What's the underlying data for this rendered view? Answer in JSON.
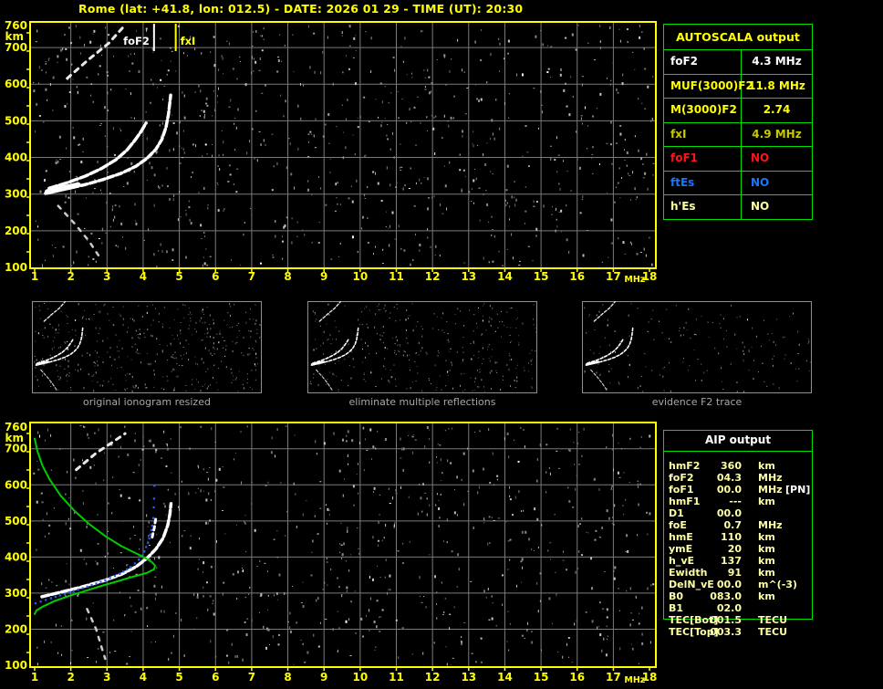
{
  "title": "Rome (lat: +41.8, lon: 012.5) - DATE: 2026 01 29 - TIME (UT): 20:30",
  "colors": {
    "axis_yellow": "#ffff00",
    "grid_gray": "#7a7a7a",
    "table_border_green": "#00e000",
    "profile_green": "#00cc00",
    "scaled_trace_blue": "#2b5dff",
    "pale_yellow": "#ffffa6"
  },
  "autoscala_table": {
    "header": "AUTOSCALA output",
    "rows": [
      {
        "label": "foF2",
        "value": "4.3 MHz",
        "color": "#ffffff",
        "center": true
      },
      {
        "label": "MUF(3000)F2",
        "value": "11.8 MHz",
        "color": "#ffff00",
        "center": true
      },
      {
        "label": "M(3000)F2",
        "value": "2.74",
        "color": "#ffff00",
        "center": true
      },
      {
        "label": "fxI",
        "value": "4.9 MHz",
        "color": "#c8c800",
        "center": true
      },
      {
        "label": "foF1",
        "value": "NO",
        "color": "#ff1515",
        "center": false
      },
      {
        "label": "ftEs",
        "value": "NO",
        "color": "#1a75ff",
        "center": false
      },
      {
        "label": "h'Es",
        "value": "NO",
        "color": "#ffff9c",
        "center": false
      }
    ]
  },
  "aip_table": {
    "header": "AIP output",
    "rows": [
      {
        "label": "hmF2",
        "value": "360",
        "unit": "km",
        "extra": ""
      },
      {
        "label": "foF2",
        "value": "04.3",
        "unit": "MHz",
        "extra": ""
      },
      {
        "label": "foF1",
        "value": "00.0",
        "unit": "MHz",
        "extra": "[PN]"
      },
      {
        "label": "hmF1",
        "value": "---",
        "unit": "km",
        "extra": ""
      },
      {
        "label": "D1",
        "value": "00.0",
        "unit": "",
        "extra": ""
      },
      {
        "label": "foE",
        "value": "0.7",
        "unit": "MHz",
        "extra": ""
      },
      {
        "label": "hmE",
        "value": "110",
        "unit": "km",
        "extra": ""
      },
      {
        "label": "ymE",
        "value": "20",
        "unit": "km",
        "extra": ""
      },
      {
        "label": "h_vE",
        "value": "137",
        "unit": "km",
        "extra": ""
      },
      {
        "label": "Ewidth",
        "value": "91",
        "unit": "km",
        "extra": ""
      },
      {
        "label": "DelN_vE",
        "value": "00.0",
        "unit": "m^(-3)",
        "extra": ""
      },
      {
        "label": "B0",
        "value": "083.0",
        "unit": "km",
        "extra": ""
      },
      {
        "label": "B1",
        "value": "02.0",
        "unit": "",
        "extra": ""
      },
      {
        "label": "TEC[Bot]",
        "value": "001.5",
        "unit": "TECU",
        "extra": ""
      },
      {
        "label": "TEC[Top]",
        "value": "003.3",
        "unit": "TECU",
        "extra": ""
      }
    ]
  },
  "thumbnails": [
    {
      "caption": "original ionogram resized",
      "noise_density": 430
    },
    {
      "caption": "eliminate multiple reflections",
      "noise_density": 340
    },
    {
      "caption": "evidence F2 trace",
      "noise_density": 170
    }
  ],
  "chart_data": [
    {
      "name": "ionogram with autoscaled characteristics",
      "type": "scatter",
      "xlabel": "MHz",
      "ylabel": "km",
      "xlim": [
        1,
        18
      ],
      "ylim": [
        100,
        760
      ],
      "x_ticks": [
        1,
        2,
        3,
        4,
        5,
        6,
        7,
        8,
        9,
        10,
        11,
        12,
        13,
        14,
        15,
        16,
        17,
        18
      ],
      "y_ticks": [
        760,
        700,
        600,
        500,
        400,
        300,
        200,
        100
      ],
      "grid": true,
      "markers": [
        {
          "label": "foF2",
          "x": 4.3,
          "color": "#ffffff",
          "side": "left"
        },
        {
          "label": "fxI",
          "x": 4.9,
          "color": "#ffff00",
          "side": "right"
        }
      ],
      "series": [
        {
          "name": "F2 X-mode echo trace",
          "color": "#ffffff",
          "width": 3.5,
          "dash": "7 3",
          "points": [
            [
              1.3,
              302
            ],
            [
              1.8,
              313
            ],
            [
              2.4,
              326
            ],
            [
              2.9,
              340
            ],
            [
              3.4,
              357
            ],
            [
              3.8,
              376
            ],
            [
              4.1,
              397
            ],
            [
              4.35,
              422
            ],
            [
              4.52,
              450
            ],
            [
              4.63,
              482
            ],
            [
              4.7,
              518
            ],
            [
              4.74,
              552
            ],
            [
              4.76,
              570
            ]
          ]
        },
        {
          "name": "F2 O-mode echo trace",
          "color": "#ffffff",
          "width": 3.5,
          "dash": "9 3",
          "points": [
            [
              1.4,
              316
            ],
            [
              1.9,
              331
            ],
            [
              2.4,
              349
            ],
            [
              2.85,
              370
            ],
            [
              3.25,
              394
            ],
            [
              3.55,
              420
            ],
            [
              3.78,
              448
            ],
            [
              3.95,
              472
            ],
            [
              4.08,
              494
            ]
          ]
        },
        {
          "name": "low-frequency echo blob",
          "color": "#ffffff",
          "width": 6,
          "dash": "",
          "points": [
            [
              1.35,
              306
            ],
            [
              1.75,
              315
            ],
            [
              2.2,
              325
            ]
          ]
        },
        {
          "name": "oblique streak upper",
          "color": "#e8e8e8",
          "width": 3,
          "dash": "5 6",
          "points": [
            [
              1.9,
              616
            ],
            [
              2.5,
              668
            ],
            [
              3.05,
              712
            ],
            [
              3.45,
              756
            ]
          ]
        },
        {
          "name": "oblique streak lower",
          "color": "#cccccc",
          "width": 2.5,
          "dash": "4 7",
          "points": [
            [
              1.65,
              268
            ],
            [
              2.1,
              220
            ],
            [
              2.5,
              172
            ],
            [
              2.85,
              120
            ]
          ]
        }
      ]
    },
    {
      "name": "ionogram with restored trace and electron density profile",
      "type": "scatter",
      "xlabel": "MHz",
      "ylabel": "km",
      "xlim": [
        1,
        18
      ],
      "ylim": [
        100,
        760
      ],
      "x_ticks": [
        1,
        2,
        3,
        4,
        5,
        6,
        7,
        8,
        9,
        10,
        11,
        12,
        13,
        14,
        15,
        16,
        17,
        18
      ],
      "y_ticks": [
        760,
        700,
        600,
        500,
        400,
        300,
        200,
        100
      ],
      "grid": true,
      "markers": [],
      "series": [
        {
          "name": "F2 echo trace",
          "color": "#ffffff",
          "width": 3.5,
          "dash": "8 3",
          "points": [
            [
              1.2,
              290
            ],
            [
              1.7,
              302
            ],
            [
              2.3,
              317
            ],
            [
              2.9,
              334
            ],
            [
              3.4,
              352
            ],
            [
              3.8,
              373
            ],
            [
              4.1,
              396
            ],
            [
              4.35,
              422
            ],
            [
              4.55,
              452
            ],
            [
              4.68,
              488
            ],
            [
              4.74,
              520
            ],
            [
              4.77,
              548
            ]
          ]
        },
        {
          "name": "O-mode upper dashes",
          "color": "#ffffff",
          "width": 3,
          "dash": "4 4",
          "points": [
            [
              4.25,
              455
            ],
            [
              4.31,
              482
            ],
            [
              4.35,
              508
            ]
          ]
        },
        {
          "name": "autoscaled trace points",
          "color": "#2b5dff",
          "width": 2,
          "dash": "",
          "style": "dots",
          "points": [
            [
              1.02,
              272
            ],
            [
              1.45,
              286
            ],
            [
              1.95,
              302
            ],
            [
              2.45,
              318
            ],
            [
              2.95,
              336
            ],
            [
              3.35,
              354
            ],
            [
              3.65,
              372
            ],
            [
              3.88,
              393
            ],
            [
              4.03,
              416
            ],
            [
              4.13,
              440
            ],
            [
              4.2,
              463
            ],
            [
              4.25,
              487
            ],
            [
              4.28,
              508
            ]
          ]
        },
        {
          "name": "autoscaled trace sparse points",
          "color": "#2b5dff",
          "width": 2,
          "dash": "",
          "style": "sparse-dots",
          "points": [
            [
              4.29,
              538
            ],
            [
              4.3,
              562
            ],
            [
              4.31,
              598
            ]
          ]
        },
        {
          "name": "electron density profile",
          "color": "#00cc00",
          "width": 2,
          "dash": "",
          "points": [
            [
              1.0,
              728
            ],
            [
              1.08,
              692
            ],
            [
              1.22,
              652
            ],
            [
              1.42,
              614
            ],
            [
              1.72,
              570
            ],
            [
              2.1,
              528
            ],
            [
              2.5,
              492
            ],
            [
              2.95,
              458
            ],
            [
              3.4,
              430
            ],
            [
              3.85,
              408
            ],
            [
              4.15,
              392
            ],
            [
              4.25,
              385
            ],
            [
              4.33,
              376
            ],
            [
              4.3,
              366
            ],
            [
              4.1,
              356
            ],
            [
              3.7,
              345
            ],
            [
              3.3,
              333
            ],
            [
              2.85,
              320
            ],
            [
              2.4,
              306
            ],
            [
              1.95,
              292
            ],
            [
              1.55,
              278
            ],
            [
              1.25,
              264
            ],
            [
              1.05,
              252
            ],
            [
              1.0,
              242
            ]
          ]
        },
        {
          "name": "oblique streak upper",
          "color": "#e8e8e8",
          "width": 3,
          "dash": "5 6",
          "points": [
            [
              2.15,
              642
            ],
            [
              2.7,
              688
            ],
            [
              3.15,
              718
            ],
            [
              3.5,
              742
            ]
          ]
        },
        {
          "name": "oblique streak lower",
          "color": "#cccccc",
          "width": 2.5,
          "dash": "4 7",
          "points": [
            [
              2.45,
              256
            ],
            [
              2.7,
              200
            ],
            [
              2.85,
              150
            ],
            [
              2.95,
              118
            ]
          ]
        }
      ]
    }
  ]
}
